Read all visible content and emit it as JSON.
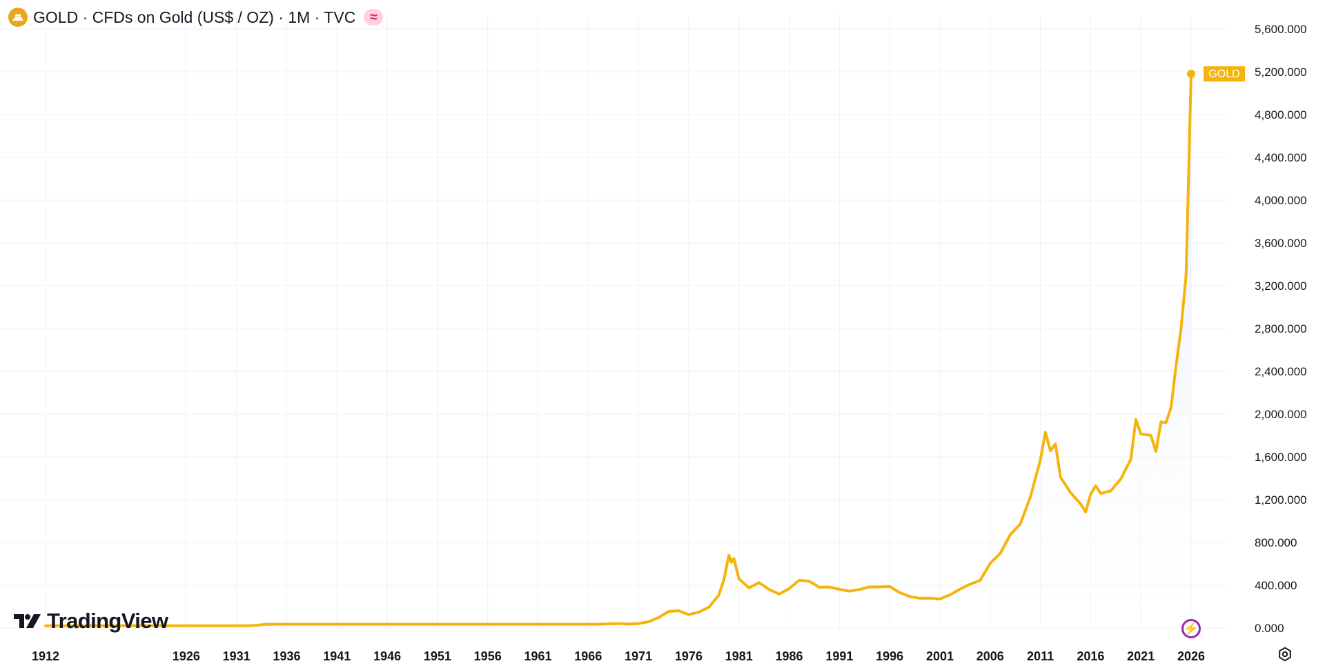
{
  "header": {
    "title": "GOLD · CFDs on Gold (US$ / OZ) · 1M · TVC",
    "status_symbol": "≈",
    "icons": {
      "symbol": "gold-bar-icon",
      "status": "market-status-icon"
    }
  },
  "branding": {
    "logo_text": "TradingView"
  },
  "controls": {
    "bolt_icon": "lightning-icon",
    "settings_icon": "settings-icon",
    "bolt_symbol": "⚡"
  },
  "chart_data": {
    "type": "area",
    "x": [
      1912,
      1926,
      1931,
      1932,
      1933,
      1934,
      1936,
      1941,
      1946,
      1951,
      1956,
      1961,
      1966,
      1967,
      1968,
      1969,
      1970,
      1971,
      1972,
      1973,
      1974,
      1975,
      1976,
      1977,
      1978,
      1979,
      1979.5,
      1980,
      1980.25,
      1980.5,
      1981,
      1982,
      1983,
      1984,
      1985,
      1986,
      1987,
      1988,
      1989,
      1990,
      1991,
      1992,
      1993,
      1994,
      1995,
      1996,
      1997,
      1998,
      1999,
      2000,
      2001,
      2002,
      2003,
      2004,
      2005,
      2006,
      2007,
      2008,
      2009,
      2010,
      2011,
      2011.5,
      2012,
      2012.5,
      2013,
      2014,
      2015,
      2015.5,
      2016,
      2016.5,
      2017,
      2018,
      2019,
      2020,
      2020.5,
      2021,
      2022,
      2022.5,
      2023,
      2023.5,
      2024,
      2024.5,
      2025,
      2025.5,
      2026
    ],
    "values": [
      20.67,
      20.67,
      20.67,
      20.67,
      25,
      35,
      35,
      35,
      35,
      35,
      35,
      35,
      35,
      35,
      39,
      42,
      36,
      41,
      58,
      97,
      154,
      161,
      125,
      148,
      193,
      307,
      450,
      680,
      615,
      650,
      460,
      375,
      424,
      360,
      317,
      368,
      446,
      437,
      381,
      383,
      362,
      344,
      360,
      384,
      384,
      387,
      331,
      294,
      278,
      279,
      271,
      310,
      363,
      409,
      445,
      604,
      697,
      872,
      972,
      1224,
      1571,
      1830,
      1657,
      1721,
      1411,
      1266,
      1160,
      1085,
      1250,
      1330,
      1257,
      1282,
      1393,
      1578,
      1950,
      1815,
      1800,
      1650,
      1927,
      1920,
      2063,
      2450,
      2800,
      3300,
      5180
    ],
    "title": "GOLD · CFDs on Gold (US$ / OZ) · 1M · TVC",
    "xlabel": "",
    "ylabel": "",
    "xlim": [
      1912,
      2026
    ],
    "ylim": [
      0,
      5600
    ],
    "x_tick_labels": [
      "1912",
      "1926",
      "1931",
      "1936",
      "1941",
      "1946",
      "1951",
      "1956",
      "1961",
      "1966",
      "1971",
      "1976",
      "1981",
      "1986",
      "1991",
      "1996",
      "2001",
      "2006",
      "2011",
      "2016",
      "2021",
      "2026"
    ],
    "y_tick_values": [
      0,
      400,
      800,
      1200,
      1600,
      2000,
      2400,
      2800,
      3200,
      3600,
      4000,
      4400,
      4800,
      5200,
      5600
    ],
    "y_tick_labels": [
      "0.000",
      "400.000",
      "800.000",
      "1,200.000",
      "1,600.000",
      "2,000.000",
      "2,400.000",
      "2,800.000",
      "3,200.000",
      "3,600.000",
      "4,000.000",
      "4,400.000",
      "4,800.000",
      "5,200.000",
      "5,600.000"
    ],
    "last_value_label": "GOLD",
    "line_color": "#f5b40c",
    "fill_color": "#dbe8fb",
    "grid": true,
    "legend": "none",
    "y_axis_position": "right"
  }
}
